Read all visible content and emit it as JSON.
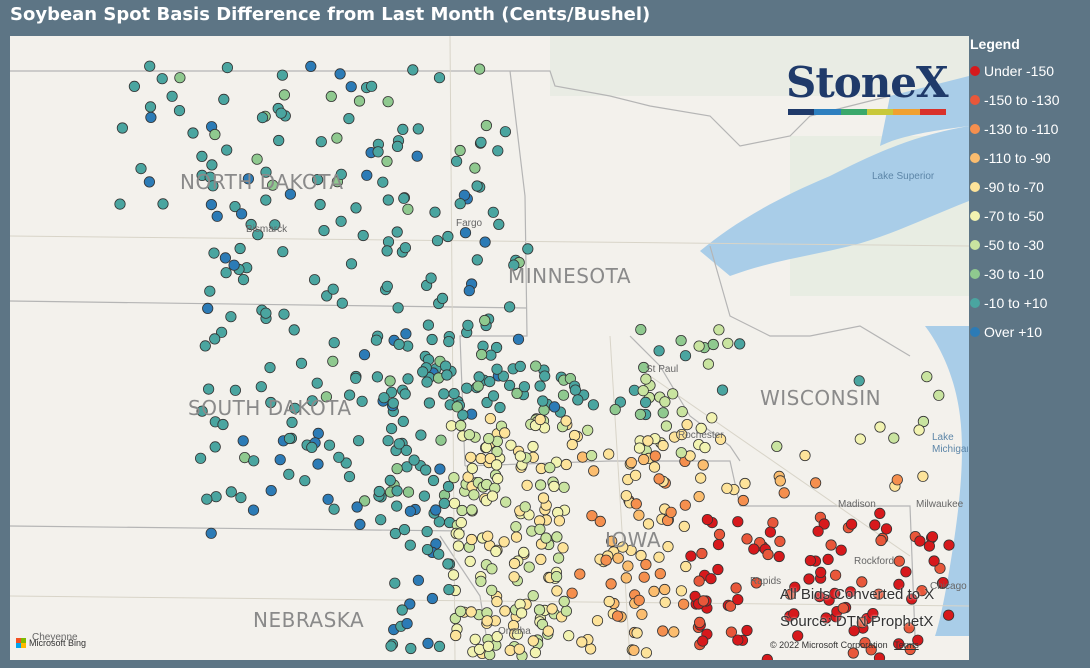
{
  "title": "Soybean Spot Basis Difference from Last Month (Cents/Bushel)",
  "legend": {
    "title": "Legend",
    "items": [
      {
        "label": "Under -150",
        "color": "#d7191c"
      },
      {
        "label": "-150 to -130",
        "color": "#e8573a"
      },
      {
        "label": "-130 to -110",
        "color": "#f58f4e"
      },
      {
        "label": "-110 to -90",
        "color": "#fbbd6f"
      },
      {
        "label": "-90 to -70",
        "color": "#fde39a"
      },
      {
        "label": "-70 to -50",
        "color": "#f2f3b1"
      },
      {
        "label": "-50 to -30",
        "color": "#c9e4a0"
      },
      {
        "label": "-30 to -10",
        "color": "#8fc98f"
      },
      {
        "label": "-10 to +10",
        "color": "#4aa5a0"
      },
      {
        "label": "Over +10",
        "color": "#2c7bb6"
      }
    ]
  },
  "map": {
    "states": [
      "NORTH DAKOTA",
      "MINNESOTA",
      "SOUTH DAKOTA",
      "WISCONSIN",
      "IOWA",
      "NEBRASKA"
    ],
    "cities": [
      "Bismarck",
      "Fargo",
      "St Paul",
      "Rochester",
      "Madison",
      "Milwaukee",
      "Rockford",
      "Chicago",
      "Rapids",
      "Omaha",
      "Cheyenne"
    ],
    "lakes": [
      "Lake Superior",
      "Lake Michigan"
    ],
    "notes": [
      "All Bids Converted to X",
      "Source: DTN ProphetX"
    ],
    "attribution": "© 2022 Microsoft Corporation",
    "terms": "Terms",
    "provider": "Microsoft Bing"
  },
  "logo": {
    "text": "StoneX",
    "bar_colors": [
      "#1f3a6a",
      "#2d7fbf",
      "#3aa86b",
      "#c8c83a",
      "#f0a030",
      "#d9312a"
    ]
  }
}
